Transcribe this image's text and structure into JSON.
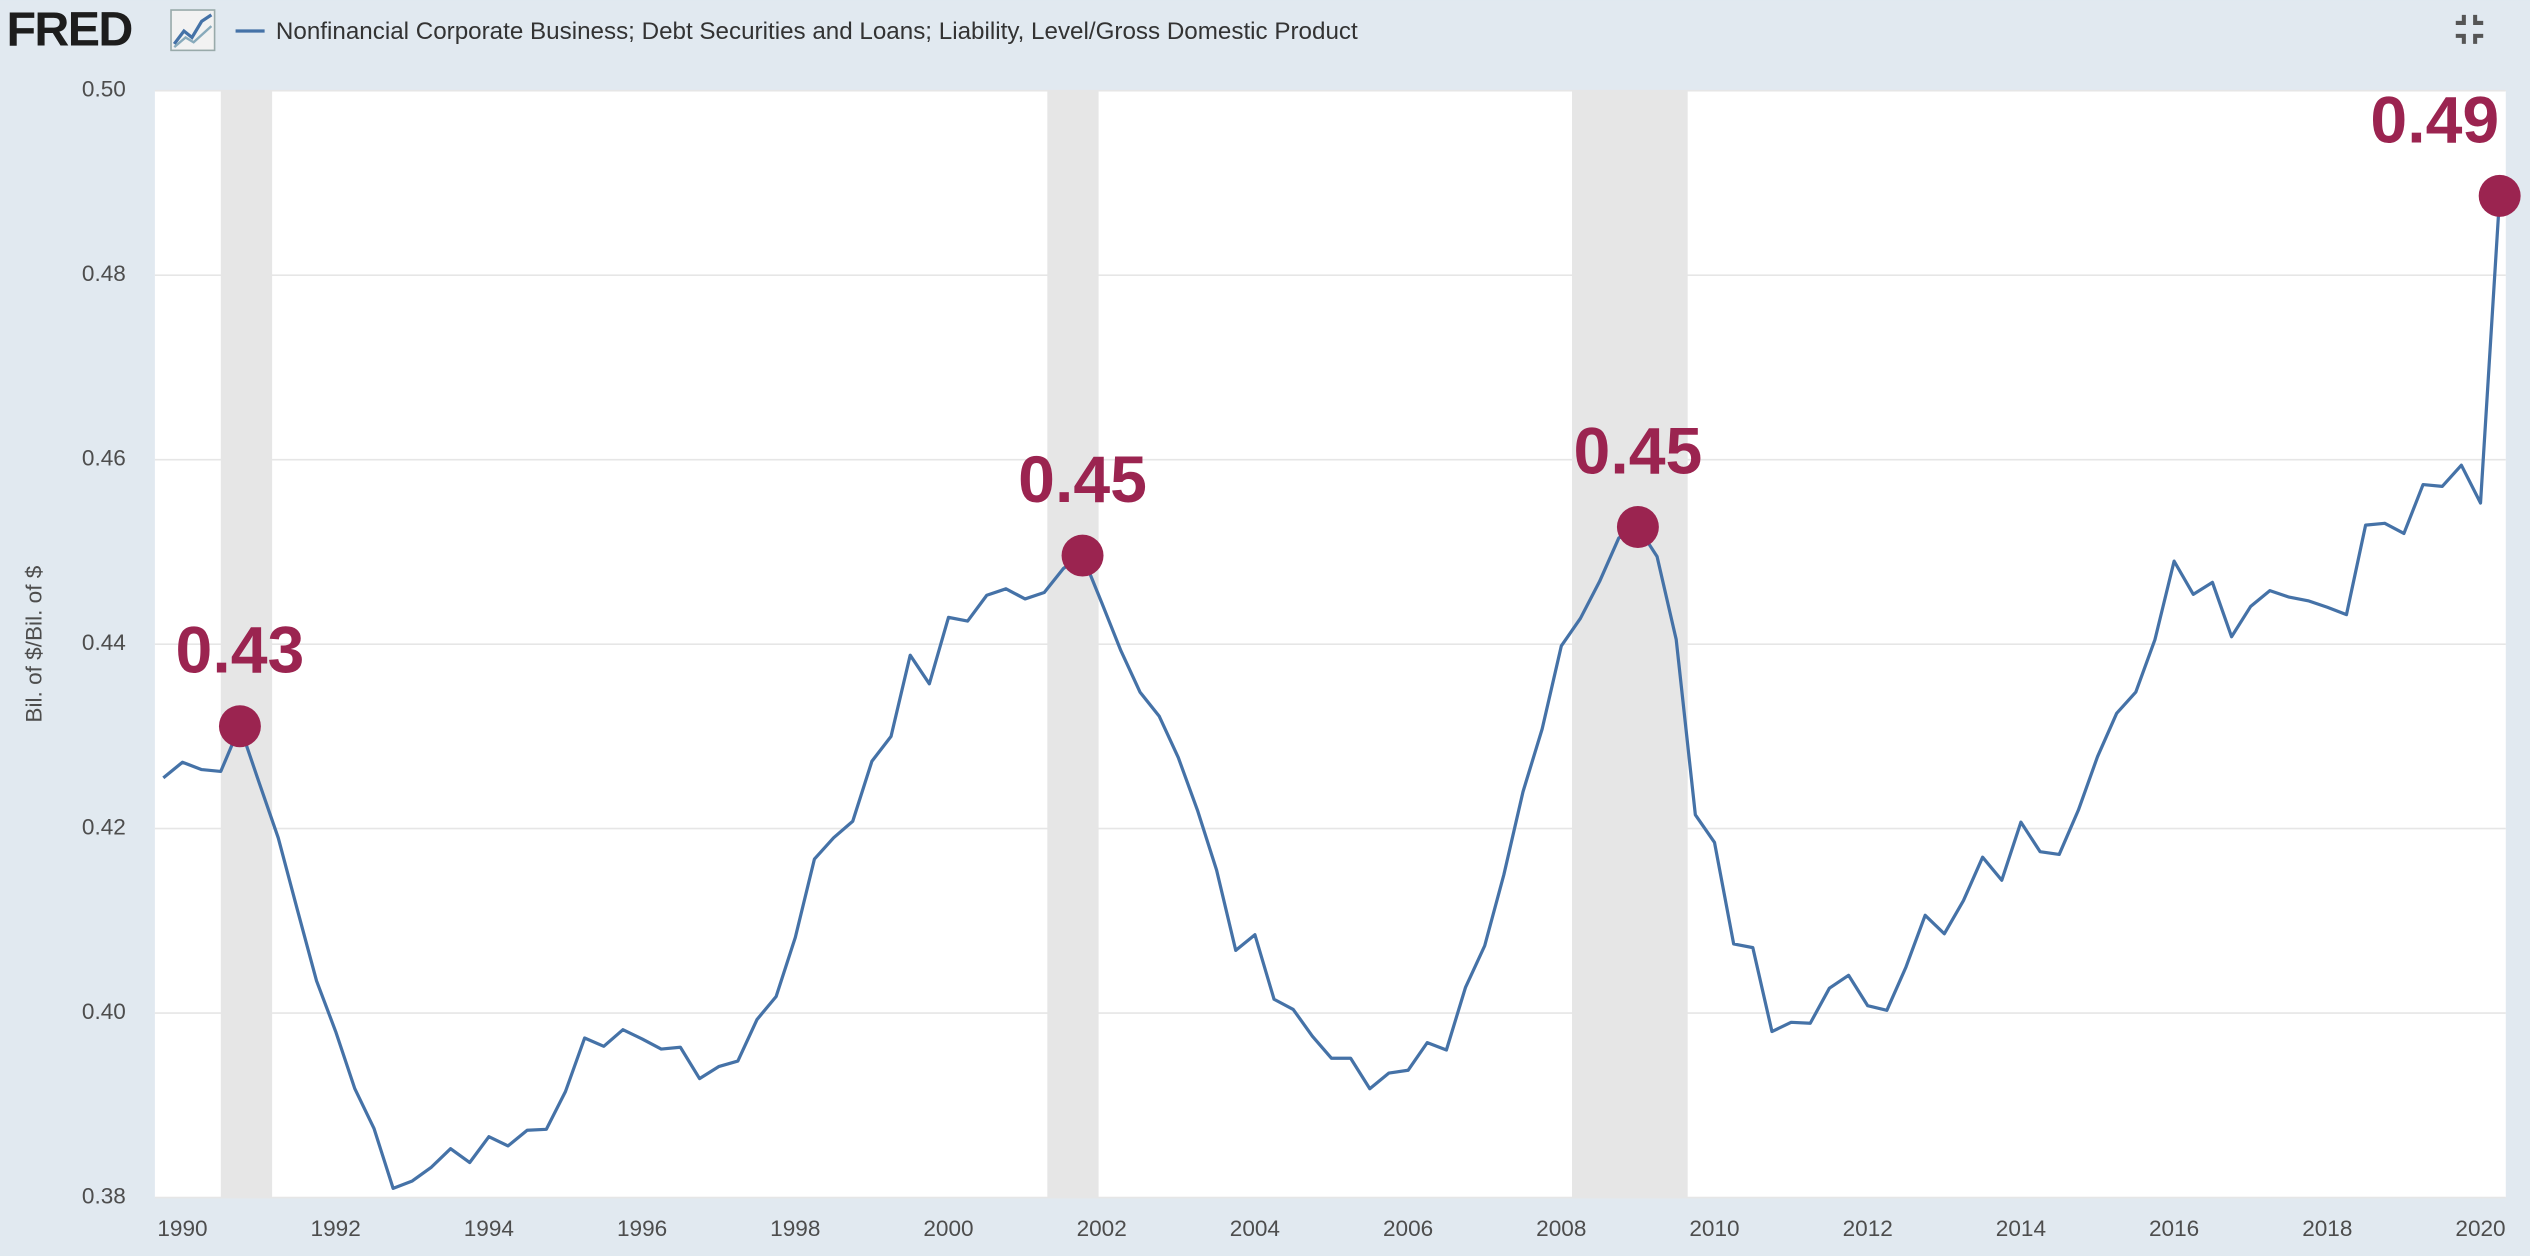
{
  "header": {
    "logo": "FRED"
  },
  "chart_data": {
    "type": "line",
    "y_label": "Bil. of $/Bil. of $",
    "x": [
      1989.75,
      1990,
      1990.25,
      1990.5,
      1990.75,
      1991,
      1991.25,
      1991.5,
      1991.75,
      1992,
      1992.25,
      1992.5,
      1992.75,
      1993,
      1993.25,
      1993.5,
      1993.75,
      1994,
      1994.25,
      1994.5,
      1994.75,
      1995,
      1995.25,
      1995.5,
      1995.75,
      1996,
      1996.25,
      1996.5,
      1996.75,
      1997,
      1997.25,
      1997.5,
      1997.75,
      1998,
      1998.25,
      1998.5,
      1998.75,
      1999,
      1999.25,
      1999.5,
      1999.75,
      2000,
      2000.25,
      2000.5,
      2000.75,
      2001,
      2001.25,
      2001.5,
      2001.75,
      2002,
      2002.25,
      2002.5,
      2002.75,
      2003,
      2003.25,
      2003.5,
      2003.75,
      2004,
      2004.25,
      2004.5,
      2004.75,
      2005,
      2005.25,
      2005.5,
      2005.75,
      2006,
      2006.25,
      2006.5,
      2006.75,
      2007,
      2007.25,
      2007.5,
      2007.75,
      2008,
      2008.25,
      2008.5,
      2008.75,
      2009,
      2009.25,
      2009.5,
      2009.75,
      2010,
      2010.25,
      2010.5,
      2010.75,
      2011,
      2011.25,
      2011.5,
      2011.75,
      2012,
      2012.25,
      2012.5,
      2012.75,
      2013,
      2013.25,
      2013.5,
      2013.75,
      2014,
      2014.25,
      2014.5,
      2014.75,
      2015,
      2015.25,
      2015.5,
      2015.75,
      2016,
      2016.25,
      2016.5,
      2016.75,
      2017,
      2017.25,
      2017.5,
      2017.75,
      2018,
      2018.25,
      2018.5,
      2018.75,
      2019,
      2019.25,
      2019.5,
      2019.75,
      2020,
      2020.25
    ],
    "series": [
      {
        "name": "Nonfinancial Corporate Business; Debt Securities and Loans; Liability, Level/Gross Domestic Product",
        "color": "#4572a7",
        "values": [
          0.4255,
          0.4272,
          0.4264,
          0.4262,
          0.4311,
          0.425,
          0.419,
          0.4112,
          0.4035,
          0.398,
          0.3918,
          0.3875,
          0.381,
          0.3818,
          0.3833,
          0.3853,
          0.3838,
          0.3866,
          0.3856,
          0.3873,
          0.3874,
          0.3915,
          0.3973,
          0.3964,
          0.3982,
          0.3972,
          0.3961,
          0.3963,
          0.3929,
          0.3942,
          0.3948,
          0.3993,
          0.4018,
          0.4082,
          0.4167,
          0.419,
          0.4208,
          0.4273,
          0.43,
          0.4388,
          0.4357,
          0.4429,
          0.4425,
          0.4453,
          0.446,
          0.4449,
          0.4456,
          0.4482,
          0.4496,
          0.4445,
          0.4393,
          0.4348,
          0.4322,
          0.4277,
          0.422,
          0.4155,
          0.4068,
          0.4085,
          0.4015,
          0.4004,
          0.3975,
          0.3951,
          0.3951,
          0.3918,
          0.3935,
          0.3938,
          0.3968,
          0.396,
          0.4028,
          0.4073,
          0.415,
          0.424,
          0.4308,
          0.4398,
          0.4428,
          0.4468,
          0.4515,
          0.4527,
          0.4495,
          0.4405,
          0.4215,
          0.4185,
          0.4075,
          0.4071,
          0.398,
          0.399,
          0.3989,
          0.4027,
          0.4041,
          0.4008,
          0.4003,
          0.405,
          0.4106,
          0.4086,
          0.4122,
          0.4169,
          0.4144,
          0.4207,
          0.4175,
          0.4172,
          0.422,
          0.4278,
          0.4325,
          0.4348,
          0.4405,
          0.449,
          0.4454,
          0.4467,
          0.4408,
          0.4441,
          0.4458,
          0.4451,
          0.4447,
          0.444,
          0.4432,
          0.4529,
          0.4531,
          0.452,
          0.4573,
          0.4571,
          0.4594,
          0.4553,
          0.4886
        ],
        "value_labels": [
          null,
          null,
          null,
          null,
          "0.43",
          null,
          null,
          null,
          null,
          null,
          null,
          null,
          null,
          null,
          null,
          null,
          null,
          null,
          null,
          null,
          null,
          null,
          null,
          null,
          null,
          null,
          null,
          null,
          null,
          null,
          null,
          null,
          null,
          null,
          null,
          null,
          null,
          null,
          null,
          null,
          null,
          null,
          null,
          null,
          null,
          null,
          null,
          null,
          "0.45",
          null,
          null,
          null,
          null,
          null,
          null,
          null,
          null,
          null,
          null,
          null,
          null,
          null,
          null,
          null,
          null,
          null,
          null,
          null,
          null,
          null,
          null,
          null,
          null,
          null,
          null,
          null,
          null,
          "0.45",
          null,
          null,
          null,
          null,
          null,
          null,
          null,
          null,
          null,
          null,
          null,
          null,
          null,
          null,
          null,
          null,
          null,
          null,
          null,
          null,
          null,
          null,
          null,
          null,
          null,
          null,
          null,
          null,
          null,
          null,
          null,
          null,
          null,
          null,
          null,
          null,
          null,
          null,
          null,
          null,
          null,
          null,
          null,
          null,
          "0.49"
        ],
        "label_color": "#9b2450"
      }
    ],
    "shaded_regions": [
      [
        1990.5,
        1991.17
      ],
      [
        2001.29,
        2001.96
      ],
      [
        2008.14,
        2009.65
      ]
    ],
    "shade_color": "#e6e6e6",
    "xlim": [
      1989.64,
      2020.33
    ],
    "xticks": [
      1990,
      1992,
      1994,
      1996,
      1998,
      2000,
      2002,
      2004,
      2006,
      2008,
      2010,
      2012,
      2014,
      2016,
      2018,
      2020
    ],
    "ylim": [
      0.38,
      0.5
    ],
    "yticks": [
      0.38,
      {
        "value": 0.4,
        "label": "0.40"
      },
      0.42,
      0.44,
      0.46,
      0.48,
      {
        "value": 0.5,
        "label": "0.50"
      }
    ],
    "grid": true
  }
}
